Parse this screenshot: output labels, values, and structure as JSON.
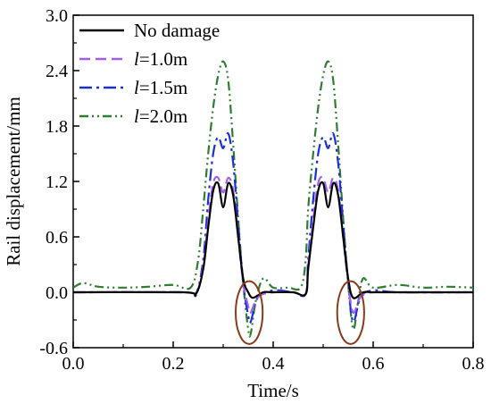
{
  "chart_data": {
    "type": "line",
    "xlabel": "Time/s",
    "ylabel": "Rail displacement/mm",
    "xlim": [
      0.0,
      0.8
    ],
    "ylim": [
      -0.6,
      3.0
    ],
    "xticks": [
      "0.0",
      "0.2",
      "0.4",
      "0.6",
      "0.8"
    ],
    "yticks": [
      "-0.6",
      "0.0",
      "0.6",
      "1.2",
      "1.8",
      "2.4",
      "3.0"
    ],
    "grid": false,
    "legend_position": "top-left",
    "series": [
      {
        "name": "No damage",
        "legend_prefix": "",
        "legend_text": "No damage",
        "color": "#000000",
        "dash": "solid",
        "x": [
          0.0,
          0.22,
          0.245,
          0.26,
          0.27,
          0.28,
          0.29,
          0.3,
          0.31,
          0.32,
          0.33,
          0.34,
          0.35,
          0.36,
          0.38,
          0.4,
          0.44,
          0.465,
          0.47,
          0.48,
          0.49,
          0.5,
          0.51,
          0.52,
          0.53,
          0.54,
          0.55,
          0.56,
          0.58,
          0.6,
          0.65,
          0.8
        ],
        "y": [
          0.0,
          0.0,
          -0.02,
          0.25,
          0.7,
          1.1,
          1.18,
          0.92,
          1.18,
          1.05,
          0.6,
          0.15,
          0.0,
          -0.06,
          0.0,
          0.0,
          0.0,
          -0.02,
          0.25,
          0.7,
          1.1,
          1.18,
          0.92,
          1.18,
          1.05,
          0.6,
          0.15,
          -0.06,
          0.0,
          0.0,
          0.0,
          0.0
        ]
      },
      {
        "name": "l=1.0m",
        "legend_prefix": "l",
        "legend_text": "=1.0m",
        "color": "#a25df1",
        "dash": "12,6",
        "x": [
          0.0,
          0.22,
          0.245,
          0.26,
          0.27,
          0.28,
          0.29,
          0.3,
          0.31,
          0.32,
          0.33,
          0.34,
          0.35,
          0.355,
          0.37,
          0.4,
          0.44,
          0.465,
          0.47,
          0.48,
          0.49,
          0.5,
          0.51,
          0.52,
          0.53,
          0.54,
          0.55,
          0.56,
          0.575,
          0.6,
          0.65,
          0.8
        ],
        "y": [
          0.0,
          0.0,
          -0.02,
          0.28,
          0.78,
          1.18,
          1.24,
          1.08,
          1.24,
          1.1,
          0.6,
          0.1,
          -0.15,
          -0.22,
          -0.05,
          0.0,
          0.0,
          -0.02,
          0.28,
          0.78,
          1.18,
          1.24,
          1.08,
          1.24,
          1.1,
          0.6,
          0.1,
          -0.22,
          -0.05,
          0.0,
          0.0,
          0.0
        ]
      },
      {
        "name": "l=1.5m",
        "legend_prefix": "l",
        "legend_text": "=1.5m",
        "color": "#1a2fd4",
        "dash": "14,5,3,5",
        "x": [
          0.0,
          0.22,
          0.245,
          0.26,
          0.27,
          0.28,
          0.29,
          0.3,
          0.31,
          0.32,
          0.33,
          0.34,
          0.35,
          0.355,
          0.37,
          0.4,
          0.44,
          0.465,
          0.47,
          0.48,
          0.49,
          0.5,
          0.51,
          0.52,
          0.53,
          0.54,
          0.55,
          0.56,
          0.575,
          0.6,
          0.65,
          0.8
        ],
        "y": [
          0.0,
          0.0,
          -0.02,
          0.35,
          1.0,
          1.5,
          1.68,
          1.56,
          1.72,
          1.4,
          0.75,
          0.1,
          -0.25,
          -0.32,
          -0.05,
          0.02,
          0.0,
          -0.02,
          0.35,
          1.0,
          1.5,
          1.68,
          1.56,
          1.72,
          1.4,
          0.75,
          0.1,
          -0.32,
          -0.05,
          0.02,
          0.0,
          0.0
        ]
      },
      {
        "name": "l=2.0m",
        "legend_prefix": "l",
        "legend_text": "=2.0m",
        "color": "#2e7d32",
        "dash": "10,4,2,4,2,4",
        "x": [
          0.0,
          0.02,
          0.05,
          0.1,
          0.15,
          0.2,
          0.235,
          0.25,
          0.26,
          0.27,
          0.28,
          0.29,
          0.3,
          0.31,
          0.32,
          0.33,
          0.34,
          0.35,
          0.355,
          0.365,
          0.38,
          0.4,
          0.43,
          0.455,
          0.465,
          0.47,
          0.48,
          0.49,
          0.5,
          0.51,
          0.52,
          0.53,
          0.54,
          0.55,
          0.56,
          0.57,
          0.58,
          0.6,
          0.65,
          0.7,
          0.75,
          0.8
        ],
        "y": [
          0.05,
          0.1,
          0.06,
          0.05,
          0.06,
          0.08,
          0.05,
          0.35,
          0.9,
          1.5,
          2.0,
          2.35,
          2.5,
          2.3,
          1.6,
          0.8,
          0.1,
          -0.4,
          -0.45,
          -0.1,
          0.15,
          0.05,
          0.05,
          0.05,
          0.35,
          0.9,
          1.5,
          2.0,
          2.35,
          2.5,
          2.3,
          1.6,
          0.8,
          0.1,
          -0.4,
          -0.1,
          0.15,
          0.05,
          0.08,
          0.05,
          0.06,
          0.05
        ]
      }
    ],
    "annotations": [
      {
        "type": "ellipse",
        "cx": 0.352,
        "cy": -0.22,
        "rx": 0.027,
        "ry": 0.34,
        "color": "#8b3a1a"
      },
      {
        "type": "ellipse",
        "cx": 0.555,
        "cy": -0.22,
        "rx": 0.027,
        "ry": 0.34,
        "color": "#8b3a1a"
      }
    ]
  }
}
